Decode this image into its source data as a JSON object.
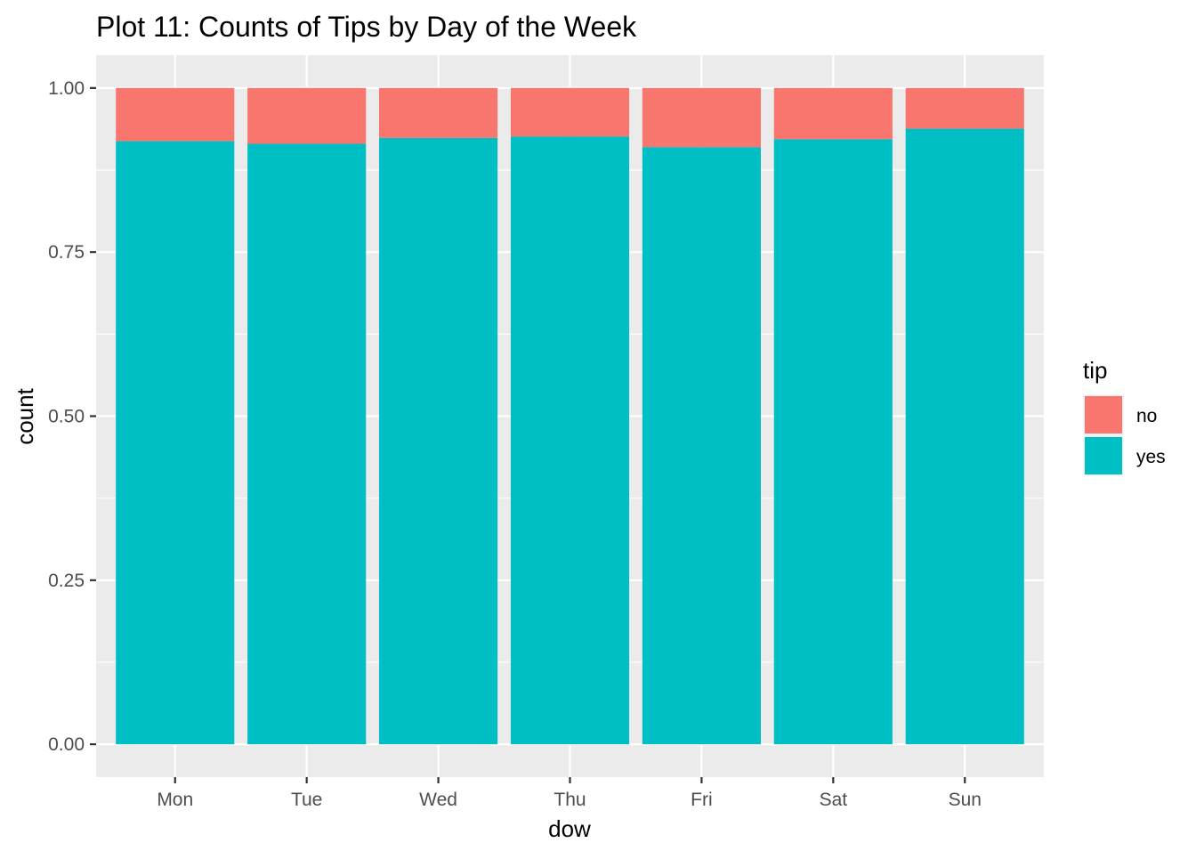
{
  "chart_data": {
    "type": "bar",
    "stacked": true,
    "title": "Plot 11: Counts of Tips by Day of the Week",
    "xlabel": "dow",
    "ylabel": "count",
    "categories": [
      "Mon",
      "Tue",
      "Wed",
      "Thu",
      "Fri",
      "Sat",
      "Sun"
    ],
    "series": [
      {
        "name": "yes",
        "color": "#00BFC4",
        "values": [
          0.919,
          0.915,
          0.924,
          0.926,
          0.91,
          0.922,
          0.938
        ]
      },
      {
        "name": "no",
        "color": "#F8766D",
        "values": [
          0.081,
          0.085,
          0.076,
          0.074,
          0.09,
          0.078,
          0.062
        ]
      }
    ],
    "ylim": [
      -0.05,
      1.05
    ],
    "yticks": [
      0.0,
      0.25,
      0.5,
      0.75,
      1.0
    ],
    "ytick_labels": [
      "0.00",
      "0.25",
      "0.50",
      "0.75",
      "1.00"
    ],
    "grid": true,
    "panel_background": "#EBEBEB",
    "legend": {
      "title": "tip",
      "position": "right",
      "entries": [
        {
          "label": "no",
          "color": "#F8766D"
        },
        {
          "label": "yes",
          "color": "#00BFC4"
        }
      ]
    }
  }
}
